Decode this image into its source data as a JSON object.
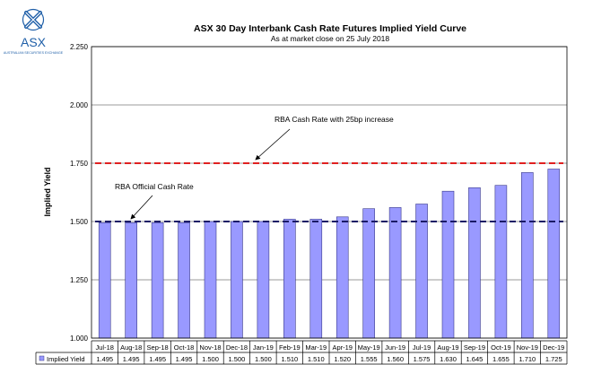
{
  "logo": {
    "brand": "ASX",
    "tagline": "AUSTRALIAN SECURITIES EXCHANGE",
    "brand_color": "#1f5fa8"
  },
  "chart_data": {
    "type": "bar",
    "title": "ASX 30 Day Interbank Cash Rate Futures Implied Yield Curve",
    "subtitle": "As at market close on 25 July 2018",
    "xlabel": "",
    "ylabel": "Implied Yield",
    "ylim": [
      1.0,
      2.25
    ],
    "yticks": [
      "1.000",
      "1.250",
      "1.500",
      "1.750",
      "2.000",
      "2.250"
    ],
    "ytick_values": [
      1.0,
      1.25,
      1.5,
      1.75,
      2.0,
      2.25
    ],
    "grid": true,
    "categories": [
      "Jul-18",
      "Aug-18",
      "Sep-18",
      "Oct-18",
      "Nov-18",
      "Dec-18",
      "Jan-19",
      "Feb-19",
      "Mar-19",
      "Apr-19",
      "May-19",
      "Jun-19",
      "Jul-19",
      "Aug-19",
      "Sep-19",
      "Oct-19",
      "Nov-19",
      "Dec-19"
    ],
    "series": [
      {
        "name": "Implied Yield",
        "values": [
          1.495,
          1.495,
          1.495,
          1.495,
          1.5,
          1.5,
          1.5,
          1.51,
          1.51,
          1.52,
          1.555,
          1.56,
          1.575,
          1.63,
          1.645,
          1.655,
          1.71,
          1.725
        ],
        "labels": [
          "1.495",
          "1.495",
          "1.495",
          "1.495",
          "1.500",
          "1.500",
          "1.500",
          "1.510",
          "1.510",
          "1.520",
          "1.555",
          "1.560",
          "1.575",
          "1.630",
          "1.645",
          "1.655",
          "1.710",
          "1.725"
        ],
        "color": "#9999ff"
      }
    ],
    "reference_lines": [
      {
        "label": "RBA Official Cash Rate",
        "value": 1.5,
        "color": "#1a1a66"
      },
      {
        "label": "RBA Cash Rate with 25bp increase",
        "value": 1.75,
        "color": "#e02020"
      }
    ]
  }
}
